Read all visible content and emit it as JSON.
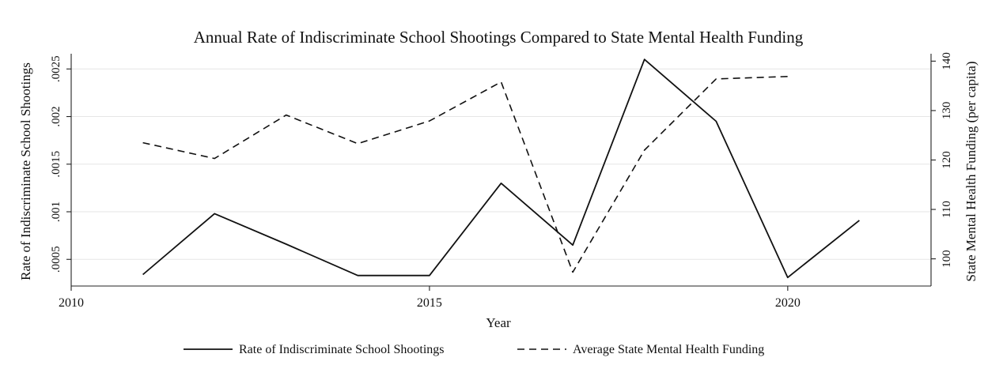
{
  "chart_data": {
    "type": "line",
    "title": "Annual Rate of Indiscriminate School Shootings Compared to State Mental Health Funding",
    "xlabel": "Year",
    "ylabel_left": "Rate of Indiscriminate School Shootings",
    "ylabel_right": "State Mental Health Funding (per capita)",
    "xlim": [
      2010,
      2022
    ],
    "x_ticks": [
      2010,
      2015,
      2020
    ],
    "x_tick_labels": [
      "2010",
      "2015",
      "2020"
    ],
    "ylim_left": [
      0.00022,
      0.00266
    ],
    "y_ticks_left": [
      0.0005,
      0.001,
      0.0015,
      0.002,
      0.0025
    ],
    "y_tick_labels_left": [
      ".0005",
      ".001",
      ".0015",
      ".002",
      ".0025"
    ],
    "ylim_right": [
      94.5,
      141.5
    ],
    "y_ticks_right": [
      100,
      110,
      120,
      130,
      140
    ],
    "y_tick_labels_right": [
      "100",
      "110",
      "120",
      "130",
      "140"
    ],
    "grid": true,
    "legend_position": "bottom",
    "series": [
      {
        "name": "Rate of Indiscriminate School Shootings",
        "axis": "left",
        "style": "solid",
        "color": "#111111",
        "x": [
          2011,
          2012,
          2013,
          2014,
          2015,
          2016,
          2017,
          2018,
          2019,
          2020,
          2021
        ],
        "values": [
          0.00034,
          0.00098,
          0.00066,
          0.00033,
          0.00033,
          0.0013,
          0.00065,
          0.0026,
          0.00195,
          0.00031,
          0.00091
        ]
      },
      {
        "name": "Average State Mental Health Funding",
        "axis": "right",
        "style": "dashed",
        "color": "#111111",
        "x": [
          2011,
          2012,
          2013,
          2014,
          2015,
          2016,
          2017,
          2018,
          2019,
          2020
        ],
        "values": [
          123.5,
          120.3,
          129.1,
          123.3,
          127.9,
          135.8,
          97.3,
          122.0,
          136.4,
          136.9
        ]
      }
    ]
  }
}
